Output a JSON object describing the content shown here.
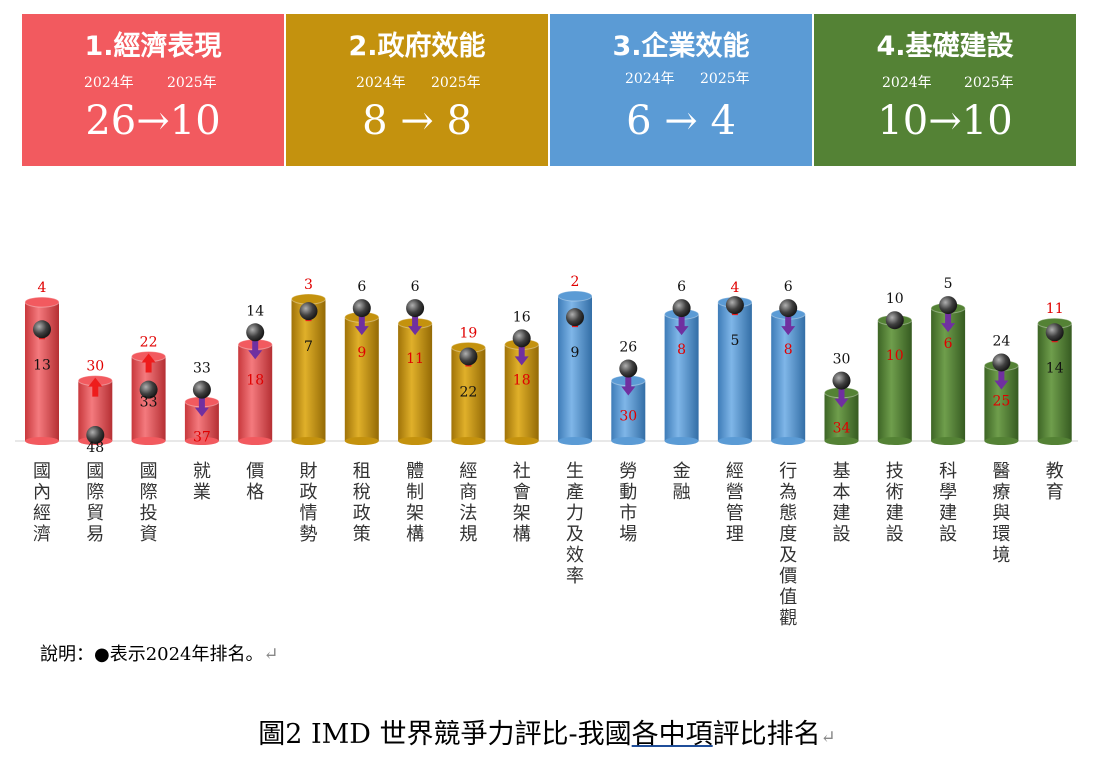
{
  "pillars": [
    {
      "title": "1.經濟表現",
      "year_a": "2024年",
      "year_b": "2025年",
      "rank_a": "26",
      "rank_b": "10",
      "color": "#f25a5f"
    },
    {
      "title": "2.政府效能",
      "year_a": "2024年",
      "year_b": "2025年",
      "rank_a": "8",
      "rank_b": "8",
      "color": "#c4920e"
    },
    {
      "title": "3.企業效能",
      "year_a": "2024年",
      "year_b": "2025年",
      "rank_a": "6",
      "rank_b": "4",
      "color": "#5b9bd5"
    },
    {
      "title": "4.基礎建設",
      "year_a": "2024年",
      "year_b": "2025年",
      "rank_a": "10",
      "rank_b": "10",
      "color": "#548235"
    }
  ],
  "chart_data": {
    "type": "bar",
    "categories": [
      "國內經濟",
      "國際貿易",
      "國際投資",
      "就業",
      "價格",
      "財政情勢",
      "租稅政策",
      "體制架構",
      "經商法規",
      "社會架構",
      "生產力及效率",
      "勞動市場",
      "金融",
      "經營管理",
      "行為態度及價值觀",
      "基本建設",
      "技術建設",
      "科學建設",
      "醫療與環境",
      "教育"
    ],
    "series": [
      {
        "values": [
          13,
          48,
          33,
          33,
          14,
          7,
          6,
          6,
          22,
          16,
          9,
          26,
          6,
          5,
          6,
          30,
          10,
          5,
          24,
          14
        ]
      },
      {
        "values": [
          4,
          30,
          22,
          37,
          18,
          3,
          9,
          11,
          19,
          18,
          2,
          30,
          8,
          4,
          8,
          34,
          10,
          6,
          25,
          11
        ]
      }
    ],
    "pillar_index": [
      0,
      0,
      0,
      0,
      0,
      1,
      1,
      1,
      1,
      1,
      2,
      2,
      2,
      2,
      2,
      3,
      3,
      3,
      3,
      3
    ],
    "bar_colors": [
      "#f25a5f",
      "#c4920e",
      "#5b9bd5",
      "#548235"
    ],
    "ylim": [
      0,
      50
    ]
  },
  "note": {
    "text": "說明：●表示2024年排名。",
    "mark": "↵"
  },
  "caption": {
    "prefix": "圖2 IMD 世界競爭力評比-我國",
    "underlined": "各中項",
    "suffix": "評比排名",
    "mark": "↵"
  }
}
